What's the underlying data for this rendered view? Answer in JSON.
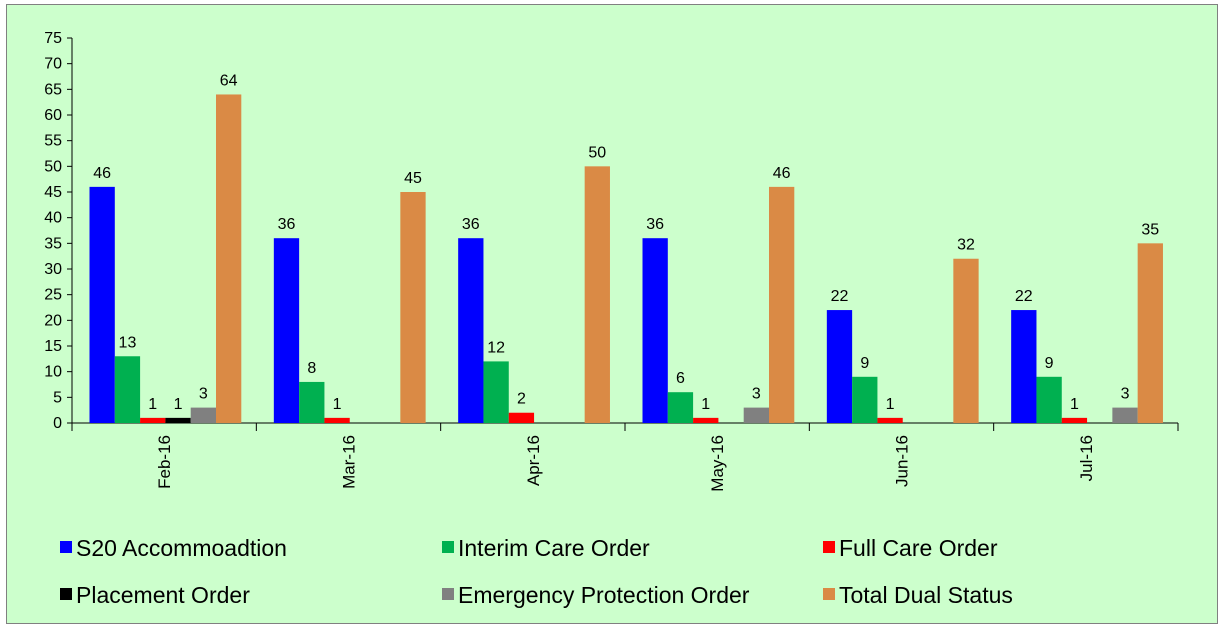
{
  "chart_data": {
    "type": "bar",
    "categories": [
      "Feb-16",
      "Mar-16",
      "Apr-16",
      "May-16",
      "Jun-16",
      "Jul-16"
    ],
    "series": [
      {
        "name": "S20 Accommoadtion",
        "color": "#0000ff",
        "values": [
          46,
          36,
          36,
          36,
          22,
          22
        ]
      },
      {
        "name": "Interim Care Order",
        "color": "#00b050",
        "values": [
          13,
          8,
          12,
          6,
          9,
          9
        ]
      },
      {
        "name": "Full Care Order",
        "color": "#ff0000",
        "values": [
          1,
          1,
          2,
          1,
          1,
          1
        ]
      },
      {
        "name": "Placement Order",
        "color": "#000000",
        "values": [
          1,
          0,
          0,
          0,
          0,
          0
        ]
      },
      {
        "name": "Emergency Protection Order",
        "color": "#808080",
        "values": [
          3,
          0,
          0,
          3,
          0,
          3
        ]
      },
      {
        "name": "Total Dual Status",
        "color": "#da8a45",
        "values": [
          64,
          45,
          50,
          46,
          32,
          35
        ]
      }
    ],
    "data_labels": [
      [
        "46",
        "13",
        "1",
        "1",
        "3",
        "64"
      ],
      [
        "36",
        "8",
        "1",
        null,
        null,
        "45"
      ],
      [
        "36",
        "12",
        "2",
        null,
        null,
        "50"
      ],
      [
        "36",
        "6",
        "1",
        null,
        "3",
        "46"
      ],
      [
        "22",
        "9",
        "1",
        null,
        null,
        "32"
      ],
      [
        "22",
        "9",
        "1",
        null,
        "3",
        "35"
      ]
    ],
    "ylim": [
      0,
      75
    ],
    "ytick_step": 5,
    "grid": false,
    "legend_position": "bottom",
    "background_color": "#ccffcc",
    "xlabel": "",
    "ylabel": "",
    "title": ""
  }
}
